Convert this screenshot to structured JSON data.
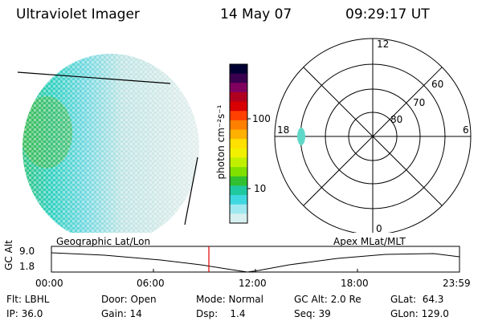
{
  "header": {
    "title": "Ultraviolet Imager",
    "date": "14 May 07",
    "time": "09:29:17 UT"
  },
  "colorbar": {
    "unit_label": "photon cm⁻²s⁻¹",
    "tick_labels": [
      "100",
      "10"
    ],
    "scale": "log",
    "colors": [
      "#000033",
      "#3a0050",
      "#800060",
      "#b00020",
      "#d80000",
      "#ff4000",
      "#ff8000",
      "#ffb000",
      "#ffe000",
      "#f0f000",
      "#c0f000",
      "#80e000",
      "#30c030",
      "#20c8a0",
      "#40d8e0",
      "#a0e8f0",
      "#d8f0f0"
    ]
  },
  "polar_plot": {
    "mlt_labels": [
      "12",
      "18",
      "6",
      "0"
    ],
    "lat_labels": [
      "60",
      "70",
      "80"
    ]
  },
  "timeline": {
    "axis_title": "GC Alt",
    "left_caption": "Geographic Lat/Lon",
    "right_caption": "Apex MLat/MLT",
    "y_labels": [
      "9.0",
      "1.8"
    ],
    "x_labels": [
      "00:00",
      "06:00",
      "12:00",
      "18:00",
      "23:59"
    ],
    "marker_color": "#e00000"
  },
  "status": {
    "flt": "Flt: LBHL",
    "ip": "IP: 36.0",
    "door": "Door: Open",
    "gain": "Gain: 14",
    "mode": "Mode: Normal",
    "dsp": "Dsp:    1.4",
    "gc_alt": "GC Alt: 2.0 Re",
    "seq": "Seq: 39",
    "glat": "GLat:  64.3",
    "glon": "GLon: 129.0"
  }
}
